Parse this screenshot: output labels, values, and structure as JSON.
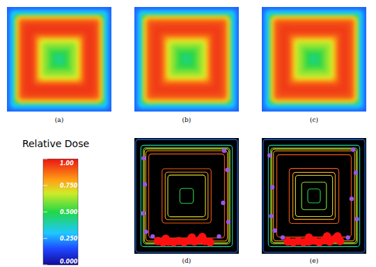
{
  "chart_data": {
    "type": "heatmap",
    "colorbar": {
      "title": "Relative Dose",
      "range": [
        0,
        1
      ],
      "ticks": [
        {
          "value": 0,
          "label": "0.000"
        },
        {
          "value": 0.25,
          "label": "0.250"
        },
        {
          "value": 0.5,
          "label": "0.500"
        },
        {
          "value": 0.75,
          "label": "0.750"
        },
        {
          "value": 1,
          "label": "1.00"
        }
      ]
    },
    "dose_maps": [
      {
        "label": "(a)",
        "profile": [
          0.42,
          0.44,
          0.47,
          0.52,
          0.56,
          0.6,
          0.63,
          0.68,
          0.78,
          0.88,
          0.93,
          0.95,
          0.95,
          0.94,
          0.92,
          0.88,
          0.75,
          0.5,
          0.3,
          0.22,
          0.18
        ]
      },
      {
        "label": "(b)",
        "profile": [
          0.43,
          0.45,
          0.48,
          0.52,
          0.56,
          0.6,
          0.64,
          0.69,
          0.79,
          0.88,
          0.92,
          0.94,
          0.94,
          0.93,
          0.91,
          0.87,
          0.74,
          0.5,
          0.3,
          0.22,
          0.18
        ]
      },
      {
        "label": "(c)",
        "profile": [
          0.43,
          0.45,
          0.48,
          0.53,
          0.57,
          0.61,
          0.64,
          0.69,
          0.79,
          0.88,
          0.92,
          0.94,
          0.94,
          0.93,
          0.91,
          0.87,
          0.74,
          0.5,
          0.3,
          0.22,
          0.18
        ]
      }
    ],
    "contour_levels": [
      0.2,
      0.3,
      0.4,
      0.5,
      0.6,
      0.7,
      0.8,
      0.9
    ],
    "contour_maps": [
      {
        "label": "(d)",
        "profile": [
          0.42,
          0.44,
          0.47,
          0.52,
          0.56,
          0.6,
          0.63,
          0.68,
          0.78,
          0.88,
          0.93,
          0.95,
          0.95,
          0.94,
          0.92,
          0.88,
          0.75,
          0.5,
          0.3,
          0.22,
          0.18
        ],
        "major": [
          [
            -0.55,
            0.78
          ],
          [
            -0.45,
            0.8
          ],
          [
            -0.35,
            0.79
          ],
          [
            -0.25,
            0.8
          ],
          [
            -0.15,
            0.78
          ],
          [
            -0.05,
            0.8
          ],
          [
            0.05,
            0.77
          ],
          [
            0.15,
            0.79
          ],
          [
            0.25,
            0.76
          ],
          [
            0.35,
            0.78
          ],
          [
            0.45,
            0.8
          ],
          [
            -0.4,
            0.74
          ],
          [
            0.1,
            0.72
          ],
          [
            0.3,
            0.71
          ]
        ],
        "minor": [
          [
            -0.82,
            -0.65
          ],
          [
            -0.8,
            -0.2
          ],
          [
            -0.83,
            0.3
          ],
          [
            -0.78,
            0.62
          ],
          [
            0.72,
            -0.78
          ],
          [
            0.78,
            -0.45
          ],
          [
            0.8,
            0.45
          ],
          [
            0.62,
            0.7
          ],
          [
            -0.65,
            0.7
          ],
          [
            0.7,
            0.12
          ]
        ]
      },
      {
        "label": "(e)",
        "profile": [
          0.43,
          0.45,
          0.48,
          0.53,
          0.57,
          0.61,
          0.64,
          0.69,
          0.79,
          0.88,
          0.92,
          0.94,
          0.94,
          0.93,
          0.91,
          0.87,
          0.74,
          0.5,
          0.3,
          0.22,
          0.18
        ],
        "major": [
          [
            -0.5,
            0.79
          ],
          [
            -0.4,
            0.8
          ],
          [
            -0.3,
            0.78
          ],
          [
            -0.2,
            0.8
          ],
          [
            -0.1,
            0.79
          ],
          [
            0.0,
            0.77
          ],
          [
            0.1,
            0.8
          ],
          [
            0.2,
            0.76
          ],
          [
            0.3,
            0.79
          ],
          [
            0.4,
            0.74
          ],
          [
            0.5,
            0.78
          ],
          [
            -0.1,
            0.72
          ],
          [
            0.25,
            0.7
          ],
          [
            0.45,
            0.7
          ]
        ],
        "minor": [
          [
            -0.85,
            -0.7
          ],
          [
            -0.8,
            -0.15
          ],
          [
            -0.82,
            0.35
          ],
          [
            -0.75,
            0.6
          ],
          [
            0.75,
            -0.8
          ],
          [
            0.8,
            -0.4
          ],
          [
            0.82,
            0.4
          ],
          [
            0.65,
            0.72
          ],
          [
            -0.6,
            0.72
          ],
          [
            0.72,
            0.05
          ]
        ]
      }
    ]
  }
}
